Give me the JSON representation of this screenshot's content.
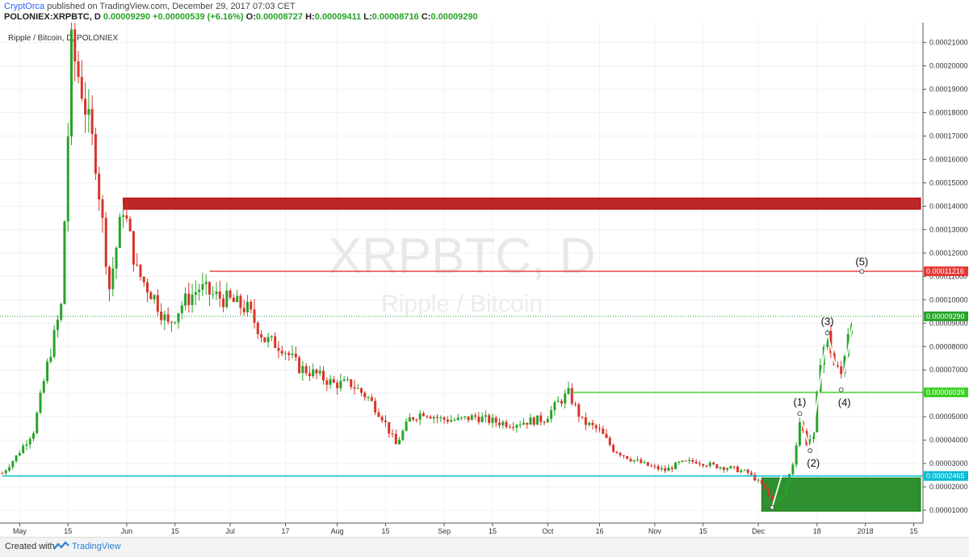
{
  "header": {
    "author": "CryptOrca",
    "published_text": " published on TradingView.com, December 29, 2017 07:03 CET",
    "symbol": "POLONIEX:XRPBTC, D",
    "last": "0.00009290",
    "change": "+0.00000539 (+6.16%)",
    "o_label": "O:",
    "o": "0.00008727",
    "h_label": "H:",
    "h": "0.00009411",
    "l_label": "L:",
    "l": "0.00008716",
    "c_label": "C:",
    "c": "0.00009290"
  },
  "chart_title": "Ripple / Bitcoin, D, POLONIEX",
  "watermark": {
    "symbol": "XRPBTC, D",
    "name": "Ripple / Bitcoin"
  },
  "footer": {
    "created_with": "Created with",
    "brand": "TradingView"
  },
  "colors": {
    "up": "#27a327",
    "down": "#d9342b",
    "red_zone": "#b30000",
    "green_zone": "#0a7d0a",
    "support_line": "#00bcd4",
    "resistance_line": "#e53935",
    "green_line": "#39d021"
  },
  "chart_data": {
    "type": "candlestick",
    "title": "Ripple / Bitcoin, D, POLONIEX",
    "x": [
      "May",
      "15",
      "Jun",
      "15",
      "Jul",
      "17",
      "Aug",
      "15",
      "Sep",
      "15",
      "Oct",
      "16",
      "Nov",
      "15",
      "Dec",
      "18",
      "2018",
      "15"
    ],
    "y_ticks": [
      1e-05,
      2e-05,
      3e-05,
      4e-05,
      5e-05,
      6e-05,
      7e-05,
      8e-05,
      9e-05,
      0.0001,
      0.00011,
      0.00012,
      0.00013,
      0.00014,
      0.00015,
      0.00016,
      0.00017,
      0.00018,
      0.00019,
      0.0002,
      0.00021
    ],
    "y_tick_labels": [
      "0.00001000",
      "0.00002000",
      "0.00003000",
      "0.00004000",
      "0.00005000",
      "0.00006000",
      "0.00007000",
      "0.00008000",
      "0.00009000",
      "0.00010000",
      "0.00011000",
      "0.00012000",
      "0.00013000",
      "0.00014000",
      "0.00015000",
      "0.00016000",
      "0.00017000",
      "0.00018000",
      "0.00019000",
      "0.00020000",
      "0.00021000"
    ],
    "ylim": [
      4.5e-06,
      0.0002185
    ],
    "x_start": "2017-04-26",
    "x_end": "2018-01-17",
    "closes_weekly": [
      [
        "2017-04-26",
        2.58e-05
      ],
      [
        "2017-04-30",
        3.3e-05
      ],
      [
        "2017-05-05",
        4.4e-05
      ],
      [
        "2017-05-09",
        7.2e-05
      ],
      [
        "2017-05-13",
        9.7e-05
      ],
      [
        "2017-05-16",
        0.000208
      ],
      [
        "2017-05-19",
        0.00019
      ],
      [
        "2017-05-23",
        0.00016
      ],
      [
        "2017-05-27",
        0.000105
      ],
      [
        "2017-05-31",
        0.00014
      ],
      [
        "2017-06-04",
        0.000112
      ],
      [
        "2017-06-09",
        0.000101
      ],
      [
        "2017-06-13",
        8.9e-05
      ],
      [
        "2017-06-17",
        9.8e-05
      ],
      [
        "2017-06-22",
        0.000105
      ],
      [
        "2017-06-26",
        0.000102
      ],
      [
        "2017-07-01",
        9.95e-05
      ],
      [
        "2017-07-06",
        9.6e-05
      ],
      [
        "2017-07-11",
        8.3e-05
      ],
      [
        "2017-07-16",
        8e-05
      ],
      [
        "2017-07-21",
        7.1e-05
      ],
      [
        "2017-07-26",
        6.8e-05
      ],
      [
        "2017-07-31",
        6.4e-05
      ],
      [
        "2017-08-05",
        6.4e-05
      ],
      [
        "2017-08-10",
        5.8e-05
      ],
      [
        "2017-08-14",
        5e-05
      ],
      [
        "2017-08-18",
        3.8e-05
      ],
      [
        "2017-08-22",
        4.9e-05
      ],
      [
        "2017-08-26",
        5.2e-05
      ],
      [
        "2017-08-31",
        4.9e-05
      ],
      [
        "2017-09-05",
        4.85e-05
      ],
      [
        "2017-09-10",
        5e-05
      ],
      [
        "2017-09-15",
        4.8e-05
      ],
      [
        "2017-09-20",
        4.7e-05
      ],
      [
        "2017-09-25",
        4.8e-05
      ],
      [
        "2017-09-30",
        4.9e-05
      ],
      [
        "2017-10-04",
        5.6e-05
      ],
      [
        "2017-10-07",
        6e-05
      ],
      [
        "2017-10-11",
        4.8e-05
      ],
      [
        "2017-10-16",
        4.4e-05
      ],
      [
        "2017-10-20",
        3.6e-05
      ],
      [
        "2017-10-25",
        3.2e-05
      ],
      [
        "2017-10-30",
        2.9e-05
      ],
      [
        "2017-11-04",
        2.7e-05
      ],
      [
        "2017-11-08",
        3e-05
      ],
      [
        "2017-11-13",
        3.1e-05
      ],
      [
        "2017-11-18",
        2.9e-05
      ],
      [
        "2017-11-23",
        2.8e-05
      ],
      [
        "2017-11-28",
        2.6e-05
      ],
      [
        "2017-12-02",
        2.1e-05
      ],
      [
        "2017-12-05",
        1.4e-05
      ],
      [
        "2017-12-08",
        1.6e-05
      ],
      [
        "2017-12-11",
        3e-05
      ],
      [
        "2017-12-13",
        4.8e-05
      ],
      [
        "2017-12-15",
        3.9e-05
      ],
      [
        "2017-12-17",
        4.2e-05
      ],
      [
        "2017-12-19",
        7.5e-05
      ],
      [
        "2017-12-21",
        8.5e-05
      ],
      [
        "2017-12-23",
        7.2e-05
      ],
      [
        "2017-12-25",
        6.8e-05
      ],
      [
        "2017-12-27",
        8.7e-05
      ],
      [
        "2017-12-28",
        9.29e-05
      ]
    ],
    "current_price": "0.00009290",
    "levels": [
      {
        "label": "0.00011216",
        "value": 0.00011216,
        "color": "#e53935",
        "from": "2017-06-25"
      },
      {
        "label": "0.00006039",
        "value": 6.039e-05,
        "color": "#39d021",
        "from": "2017-10-08"
      },
      {
        "label": "0.00002465",
        "value": 2.465e-05,
        "color": "#00bcd4",
        "from": "2017-04-26"
      }
    ],
    "zones": [
      {
        "name": "resistance-zone",
        "from": "2017-05-31",
        "to": "2018-01-17",
        "y0": 0.0001387,
        "y1": 0.0001435,
        "color": "#b30000"
      },
      {
        "name": "support-zone",
        "from": "2017-12-02",
        "to": "2018-01-17",
        "y0": 9.6e-06,
        "y1": 2.38e-05,
        "color": "#0a7d0a"
      }
    ],
    "waves": [
      {
        "label": "",
        "date": "2017-12-05",
        "y": 1.12e-05
      },
      {
        "label": "(1)",
        "date": "2017-12-13",
        "y": 5.13e-05
      },
      {
        "label": "(2)",
        "date": "2017-12-16",
        "y": 3.55e-05
      },
      {
        "label": "(3)",
        "date": "2017-12-21",
        "y": 8.58e-05
      },
      {
        "label": "(4)",
        "date": "2017-12-25",
        "y": 6.15e-05
      },
      {
        "label": "(5)",
        "date": "2017-12-31",
        "y": 0.0001121
      }
    ]
  }
}
